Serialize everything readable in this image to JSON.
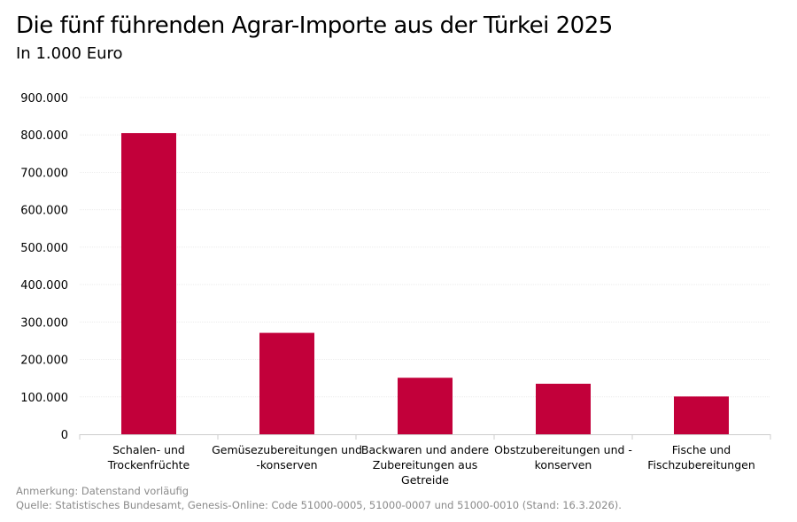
{
  "title": "Die fünf führenden Agrar-Importe aus der Türkei 2025",
  "subtitle": "In 1.000 Euro",
  "note": "Anmerkung: Datenstand vorläufig",
  "source": "Quelle: Statistisches Bundesamt, Genesis-Online: Code 51000-0005, 51000-0007 und 51000-0010 (Stand: 16.3.2026).",
  "chart_data": {
    "type": "bar",
    "title": "Die fünf führenden Agrar-Importe aus der Türkei 2025",
    "subtitle": "In 1.000 Euro",
    "categories": [
      [
        "Schalen- und",
        "Trockenfrüchte"
      ],
      [
        "Gemüsezubereitungen und",
        "-konserven"
      ],
      [
        "Backwaren und andere",
        "Zubereitungen aus",
        "Getreide"
      ],
      [
        "Obstzubereitungen und -",
        "konserven"
      ],
      [
        "Fische und",
        "Fischzubereitungen"
      ]
    ],
    "values": [
      805000,
      271000,
      151000,
      135000,
      101000
    ],
    "ylim": [
      0,
      900000
    ],
    "yticks": [
      "0",
      "100.000",
      "200.000",
      "300.000",
      "400.000",
      "500.000",
      "600.000",
      "700.000",
      "800.000",
      "900.000"
    ],
    "grid": true,
    "bar_color": "#C2003A"
  }
}
